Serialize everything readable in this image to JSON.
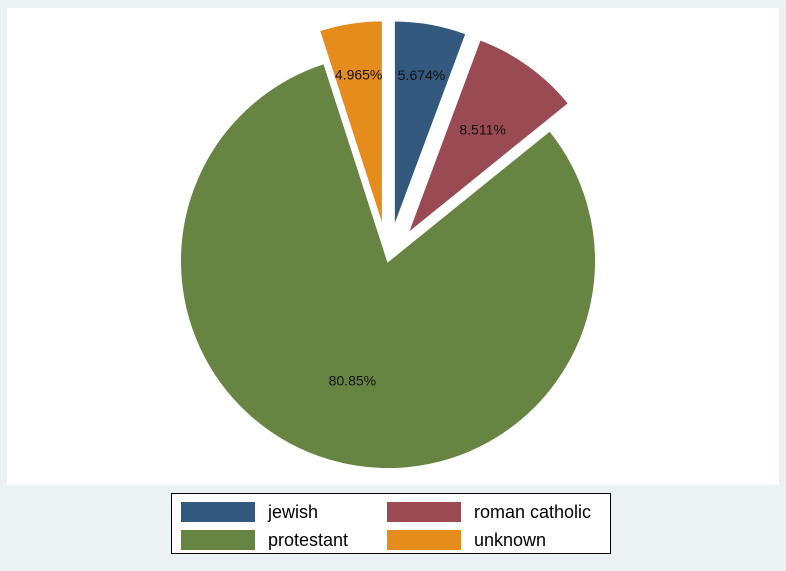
{
  "chart_data": {
    "type": "pie",
    "title": "",
    "categories": [
      "jewish",
      "roman catholic",
      "protestant",
      "unknown"
    ],
    "values": [
      5.674,
      8.511,
      80.85,
      4.965
    ],
    "labels": [
      "5.674%",
      "8.511%",
      "80.85%",
      "4.965%"
    ],
    "colors": [
      "#335a7e",
      "#9a4a52",
      "#678443",
      "#e68c1c"
    ],
    "exploded": [
      true,
      true,
      false,
      true
    ],
    "start_angle": "12 o'clock",
    "direction": "clockwise",
    "legend_position": "bottom"
  },
  "legend": {
    "items": [
      {
        "label": "jewish",
        "color": "#335a7e"
      },
      {
        "label": "roman catholic",
        "color": "#9a4a52"
      },
      {
        "label": "protestant",
        "color": "#678443"
      },
      {
        "label": "unknown",
        "color": "#e68c1c"
      }
    ]
  }
}
